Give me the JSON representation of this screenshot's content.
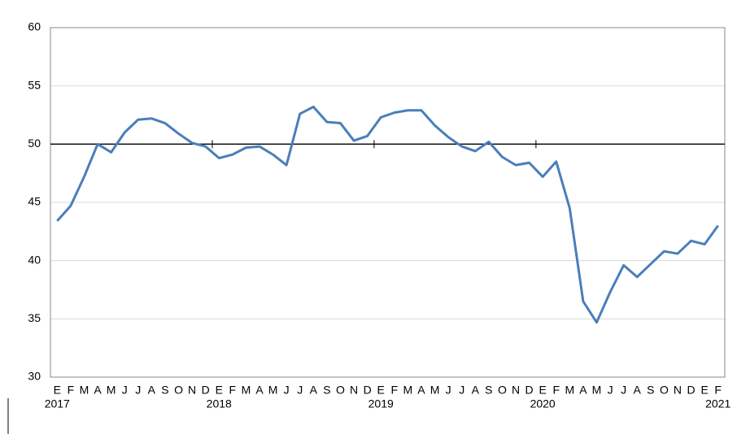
{
  "chart_data": {
    "type": "line",
    "categories": [
      "E",
      "F",
      "M",
      "A",
      "M",
      "J",
      "J",
      "A",
      "S",
      "O",
      "N",
      "D",
      "E",
      "F",
      "M",
      "A",
      "M",
      "J",
      "J",
      "A",
      "S",
      "O",
      "N",
      "D",
      "E",
      "F",
      "M",
      "A",
      "M",
      "J",
      "J",
      "A",
      "S",
      "O",
      "N",
      "D",
      "E",
      "F",
      "M",
      "A",
      "M",
      "J",
      "J",
      "A",
      "S",
      "O",
      "N",
      "D",
      "E",
      "F"
    ],
    "year_labels": [
      "2017",
      null,
      null,
      null,
      null,
      null,
      null,
      null,
      null,
      null,
      null,
      null,
      "2018",
      null,
      null,
      null,
      null,
      null,
      null,
      null,
      null,
      null,
      null,
      null,
      "2019",
      null,
      null,
      null,
      null,
      null,
      null,
      null,
      null,
      null,
      null,
      null,
      "2020",
      null,
      null,
      null,
      null,
      null,
      null,
      null,
      null,
      null,
      null,
      null,
      null,
      "2021"
    ],
    "series": [
      {
        "color": "#4a7ebb",
        "values": [
          43.4,
          44.7,
          47.2,
          50.0,
          49.3,
          51.0,
          52.1,
          52.2,
          51.8,
          50.9,
          50.1,
          49.8,
          48.8,
          49.1,
          49.7,
          49.8,
          49.1,
          48.2,
          52.6,
          53.2,
          51.9,
          51.8,
          50.3,
          50.7,
          52.3,
          52.7,
          52.9,
          52.9,
          51.6,
          50.6,
          49.8,
          49.4,
          50.2,
          48.9,
          48.2,
          48.4,
          47.2,
          48.5,
          44.5,
          36.5,
          34.7,
          37.3,
          39.6,
          38.6,
          39.7,
          40.8,
          40.6,
          41.7,
          41.4,
          43.0
        ]
      }
    ],
    "ylim": [
      30,
      60
    ],
    "yticks": [
      30,
      35,
      40,
      45,
      50,
      55,
      60
    ],
    "grid": true,
    "reference_line": 50
  }
}
